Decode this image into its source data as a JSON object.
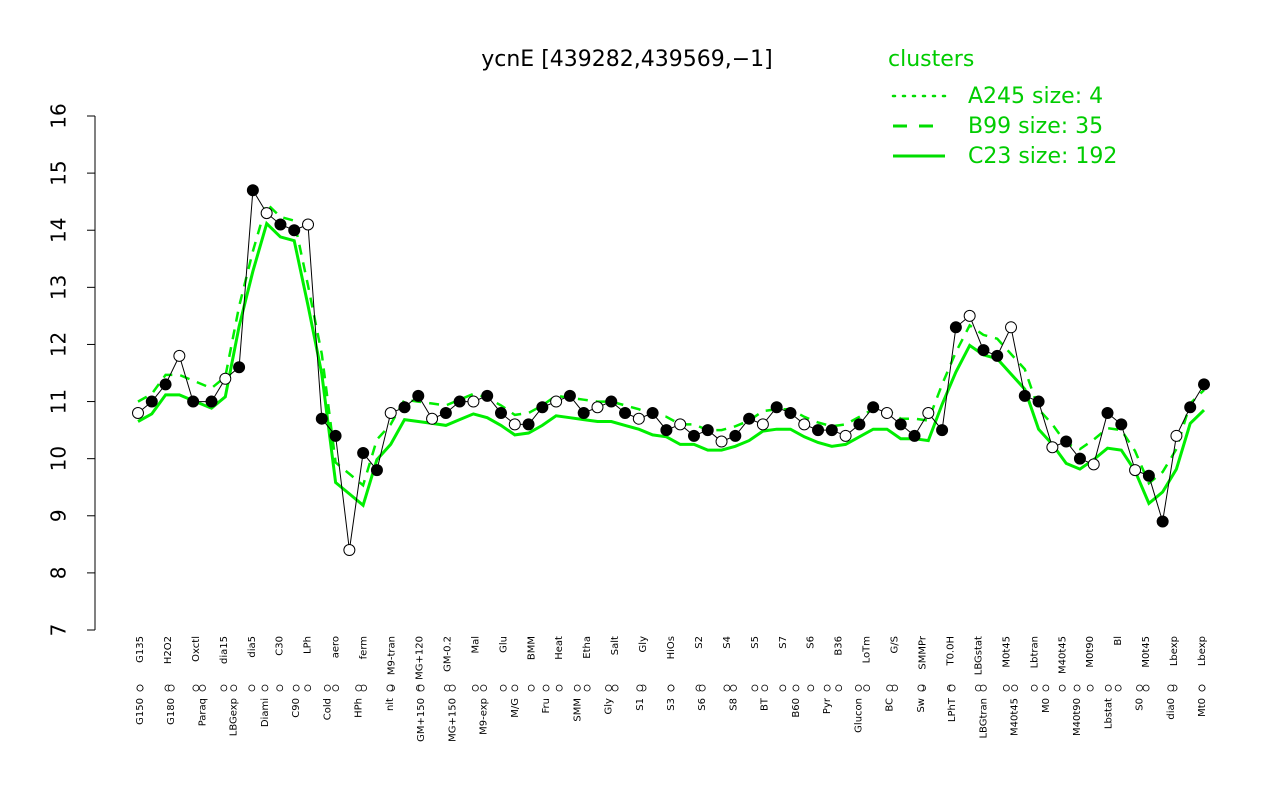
{
  "chart_data": {
    "type": "line",
    "title": "ycnE [439282,439569,−1]",
    "xlabel": "",
    "ylabel": "",
    "ylim": [
      7,
      16
    ],
    "yticks": [
      7,
      8,
      9,
      10,
      11,
      12,
      13,
      14,
      15,
      16
    ],
    "grid": false,
    "legend": {
      "title": "clusters",
      "position": "top-right",
      "entries": [
        {
          "label": "A245 size: 4",
          "style": "dotted"
        },
        {
          "label": "B99 size: 35",
          "style": "dashed"
        },
        {
          "label": "C23 size: 192",
          "style": "solid"
        }
      ]
    },
    "x_tick_labels_top": [
      "G135",
      "H2O2",
      "Oxctl",
      "dia15",
      "dia5",
      "C30",
      "LPh",
      "aero",
      "ferm",
      "M9-tran",
      "MG+120",
      "GM-0.2",
      "Mal",
      "Glu",
      "BMM",
      "Heat",
      "Etha",
      "Salt",
      "Gly",
      "HiOs",
      "S2",
      "S4",
      "S5",
      "S7",
      "S6",
      "B36",
      "LoTm",
      "G/S",
      "SMMPr",
      "T0.0H",
      "LBGstat",
      "M0t45",
      "Lbtran",
      "M40t45",
      "M0t90",
      "Bl",
      "M0t45",
      "Lbexp",
      "Lbexp"
    ],
    "x_tick_labels_bottom": [
      "G150",
      "G180",
      "Paraq",
      "LBGexp",
      "Diami",
      "C90",
      "Cold",
      "HPh",
      "nit",
      "GM+150",
      "MG+150",
      "M9-exp",
      "M/G",
      "Fru",
      "SMM",
      "Gly",
      "S1",
      "S3",
      "S6",
      "S8",
      "BT",
      "B60",
      "Pyr",
      "Glucon",
      "BC",
      "Sw",
      "LPhT",
      "LBGtran",
      "M40t45",
      "M0",
      "M40t90",
      "Lbstat",
      "S0",
      "dia0",
      "Mt0"
    ],
    "x": [
      0,
      3,
      6,
      9,
      12,
      16,
      19,
      22,
      25,
      28,
      31,
      34,
      37,
      40,
      43,
      46,
      49,
      52,
      55,
      58,
      61,
      64,
      67,
      70,
      73,
      76,
      79,
      82,
      85,
      88,
      91,
      94,
      97,
      100,
      103,
      106,
      109,
      112,
      115,
      118,
      121,
      124,
      127,
      130,
      133,
      136,
      139,
      142,
      145,
      148,
      151,
      154,
      157,
      160,
      163,
      166,
      169,
      172,
      175,
      178,
      181,
      184,
      187,
      190,
      193,
      196,
      199,
      202,
      205,
      208,
      211,
      214,
      217,
      220,
      223,
      226,
      229,
      232
    ],
    "series": [
      {
        "type": "line",
        "values": [
          10.8,
          11.0,
          11.3,
          11.8,
          11.0,
          11.0,
          11.4,
          11.6,
          14.7,
          14.3,
          14.1,
          14.0,
          14.1,
          10.7,
          10.4,
          8.4,
          10.1,
          9.8,
          10.8,
          10.9,
          11.1,
          10.7,
          10.8,
          11.0,
          11.0,
          11.1,
          10.8,
          10.6,
          10.6,
          10.9,
          11.0,
          11.1,
          10.8,
          10.9,
          11.0,
          10.8,
          10.7,
          10.8,
          10.5,
          10.6,
          10.4,
          10.5,
          10.3,
          10.4,
          10.7,
          10.6,
          10.9,
          10.8,
          10.6,
          10.5,
          10.5,
          10.4,
          10.6,
          10.9,
          10.8,
          10.6,
          10.4,
          10.8,
          10.5,
          12.3,
          12.5,
          11.9,
          11.8,
          12.3,
          11.1,
          11.0,
          10.2,
          10.3,
          10.0,
          9.9,
          10.8,
          10.6,
          9.8,
          9.7,
          8.9,
          10.4,
          10.9,
          11.3
        ],
        "note": ""
      }
    ]
  }
}
